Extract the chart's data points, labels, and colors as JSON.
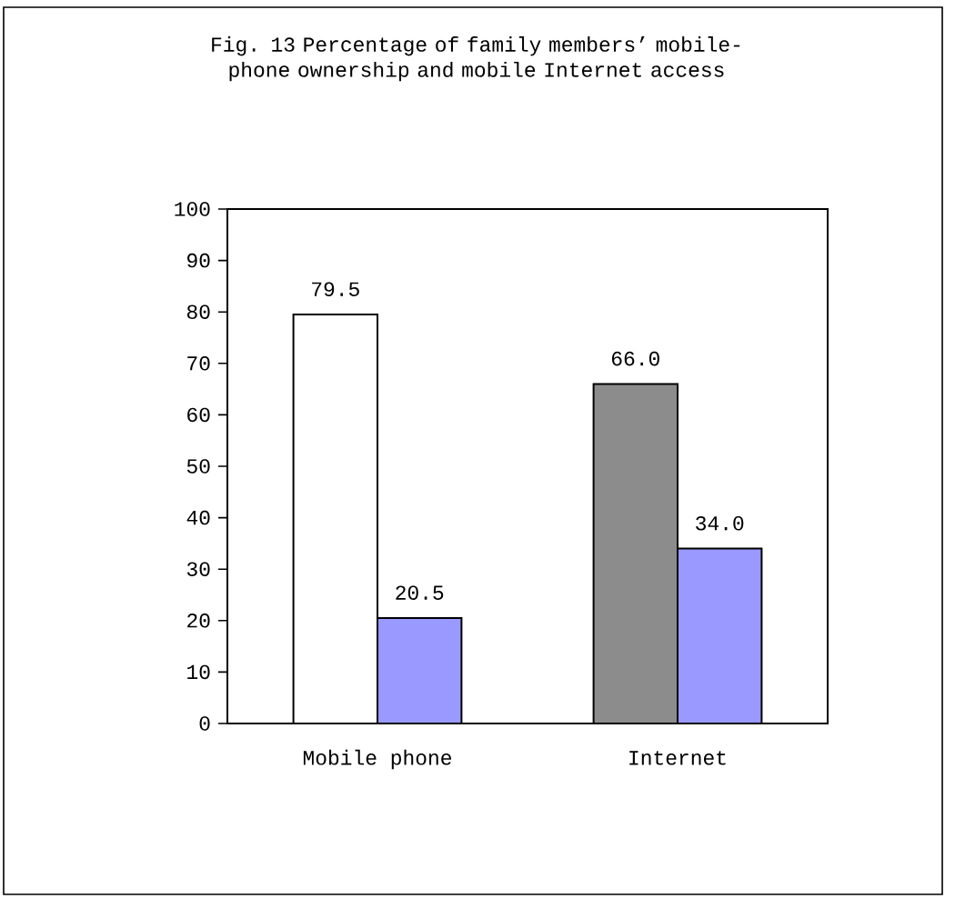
{
  "chart_data": {
    "type": "bar",
    "title": "Fig. 13  Percentage of family members’ mobile-phone ownership and mobile Internet access",
    "categories": [
      "Mobile phone",
      "Internet"
    ],
    "series": [
      {
        "colors": [
          "#ffffff",
          "#8c8c8c"
        ],
        "values": [
          79.5,
          66.0
        ],
        "value_labels": [
          "79.5",
          "66.0"
        ]
      },
      {
        "color": "#9999ff",
        "values": [
          20.5,
          34.0
        ],
        "value_labels": [
          "20.5",
          "34.0"
        ]
      }
    ],
    "ylim": [
      0,
      100
    ],
    "yticks": [
      0,
      10,
      20,
      30,
      40,
      50,
      60,
      70,
      80,
      90,
      100
    ],
    "grid": false
  }
}
